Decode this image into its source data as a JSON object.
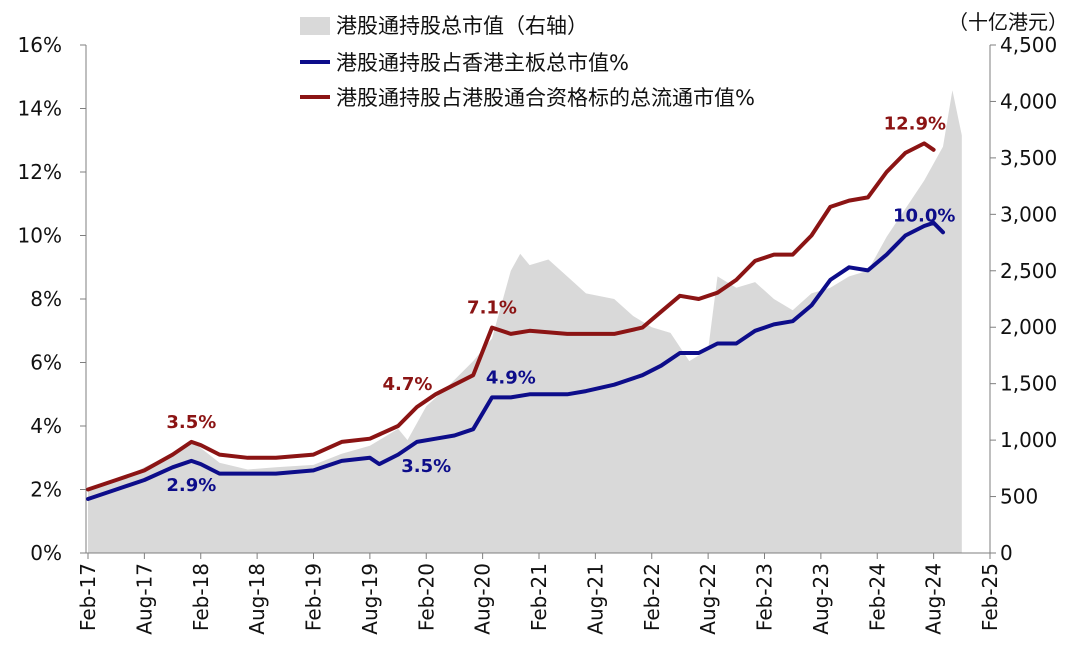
{
  "chart_data": {
    "type": "line",
    "x_ticks": [
      "Feb-17",
      "Aug-17",
      "Feb-18",
      "Aug-18",
      "Feb-19",
      "Aug-19",
      "Feb-20",
      "Aug-20",
      "Feb-21",
      "Aug-21",
      "Feb-22",
      "Aug-22",
      "Feb-23",
      "Aug-23",
      "Feb-24",
      "Aug-24",
      "Feb-25"
    ],
    "y_left": {
      "ticks": [
        "0%",
        "2%",
        "4%",
        "6%",
        "8%",
        "10%",
        "12%",
        "14%",
        "16%"
      ],
      "range": [
        0,
        16
      ]
    },
    "y_right": {
      "unit_label": "（十亿港元）",
      "ticks": [
        "0",
        "500",
        "1,000",
        "1,500",
        "2,000",
        "2,500",
        "3,000",
        "3,500",
        "4,000",
        "4,500"
      ],
      "range": [
        0,
        4500
      ]
    },
    "legend": {
      "area_label": "港股通持股总市值（右轴）",
      "blue_label": "港股通持股占香港主板总市值%",
      "red_label": "港股通持股占港股通合资格标的总流通市值%"
    },
    "colors": {
      "area": "#d9d9d9",
      "blue": "#0d0d8a",
      "red": "#8b1414"
    },
    "series": [
      {
        "name": "港股通持股总市值（右轴）",
        "axis": "right",
        "points": [
          [
            0,
            560
          ],
          [
            3,
            630
          ],
          [
            6,
            760
          ],
          [
            9,
            880
          ],
          [
            11,
            1000
          ],
          [
            12,
            930
          ],
          [
            14,
            800
          ],
          [
            17,
            740
          ],
          [
            20,
            760
          ],
          [
            24,
            780
          ],
          [
            27,
            880
          ],
          [
            30,
            950
          ],
          [
            33,
            1100
          ],
          [
            34,
            1000
          ],
          [
            36,
            1300
          ],
          [
            38,
            1450
          ],
          [
            41,
            1700
          ],
          [
            43,
            1900
          ],
          [
            45,
            2500
          ],
          [
            46,
            2650
          ],
          [
            47,
            2550
          ],
          [
            49,
            2600
          ],
          [
            51,
            2450
          ],
          [
            53,
            2300
          ],
          [
            56,
            2250
          ],
          [
            58,
            2100
          ],
          [
            60,
            2000
          ],
          [
            62,
            1950
          ],
          [
            64,
            1700
          ],
          [
            66,
            1800
          ],
          [
            67,
            2450
          ],
          [
            69,
            2350
          ],
          [
            71,
            2400
          ],
          [
            73,
            2250
          ],
          [
            75,
            2150
          ],
          [
            77,
            2300
          ],
          [
            79,
            2350
          ],
          [
            81,
            2450
          ],
          [
            83,
            2500
          ],
          [
            85,
            2800
          ],
          [
            87,
            3050
          ],
          [
            89,
            3300
          ],
          [
            91,
            3600
          ],
          [
            92,
            4100
          ],
          [
            93,
            3700
          ]
        ]
      },
      {
        "name": "港股通持股占香港主板总市值%",
        "axis": "left",
        "points": [
          [
            0,
            1.7
          ],
          [
            3,
            2.0
          ],
          [
            6,
            2.3
          ],
          [
            9,
            2.7
          ],
          [
            11,
            2.9
          ],
          [
            12,
            2.8
          ],
          [
            14,
            2.5
          ],
          [
            17,
            2.5
          ],
          [
            20,
            2.5
          ],
          [
            24,
            2.6
          ],
          [
            27,
            2.9
          ],
          [
            30,
            3.0
          ],
          [
            31,
            2.8
          ],
          [
            33,
            3.1
          ],
          [
            35,
            3.5
          ],
          [
            37,
            3.6
          ],
          [
            39,
            3.7
          ],
          [
            41,
            3.9
          ],
          [
            43,
            4.9
          ],
          [
            45,
            4.9
          ],
          [
            47,
            5.0
          ],
          [
            51,
            5.0
          ],
          [
            53,
            5.1
          ],
          [
            56,
            5.3
          ],
          [
            59,
            5.6
          ],
          [
            61,
            5.9
          ],
          [
            63,
            6.3
          ],
          [
            65,
            6.3
          ],
          [
            67,
            6.6
          ],
          [
            69,
            6.6
          ],
          [
            71,
            7.0
          ],
          [
            73,
            7.2
          ],
          [
            75,
            7.3
          ],
          [
            77,
            7.8
          ],
          [
            79,
            8.6
          ],
          [
            81,
            9.0
          ],
          [
            83,
            8.9
          ],
          [
            85,
            9.4
          ],
          [
            87,
            10.0
          ],
          [
            89,
            10.3
          ],
          [
            90,
            10.4
          ],
          [
            91,
            10.1
          ]
        ]
      },
      {
        "name": "港股通持股占港股通合资格标的总流通市值%",
        "axis": "left",
        "points": [
          [
            0,
            2.0
          ],
          [
            3,
            2.3
          ],
          [
            6,
            2.6
          ],
          [
            9,
            3.1
          ],
          [
            11,
            3.5
          ],
          [
            12,
            3.4
          ],
          [
            14,
            3.1
          ],
          [
            17,
            3.0
          ],
          [
            20,
            3.0
          ],
          [
            24,
            3.1
          ],
          [
            27,
            3.5
          ],
          [
            30,
            3.6
          ],
          [
            33,
            4.0
          ],
          [
            35,
            4.6
          ],
          [
            37,
            5.0
          ],
          [
            39,
            5.3
          ],
          [
            41,
            5.6
          ],
          [
            43,
            7.1
          ],
          [
            45,
            6.9
          ],
          [
            47,
            7.0
          ],
          [
            51,
            6.9
          ],
          [
            53,
            6.9
          ],
          [
            56,
            6.9
          ],
          [
            59,
            7.1
          ],
          [
            61,
            7.6
          ],
          [
            63,
            8.1
          ],
          [
            65,
            8.0
          ],
          [
            67,
            8.2
          ],
          [
            69,
            8.6
          ],
          [
            71,
            9.2
          ],
          [
            73,
            9.4
          ],
          [
            75,
            9.4
          ],
          [
            77,
            10.0
          ],
          [
            79,
            10.9
          ],
          [
            81,
            11.1
          ],
          [
            83,
            11.2
          ],
          [
            85,
            12.0
          ],
          [
            87,
            12.6
          ],
          [
            89,
            12.9
          ],
          [
            90,
            12.7
          ]
        ]
      }
    ],
    "annotations": [
      {
        "text": "3.5%",
        "series": "red",
        "x": 11,
        "y": 3.5,
        "pos": "above"
      },
      {
        "text": "2.9%",
        "series": "blue",
        "x": 11,
        "y": 2.9,
        "pos": "below"
      },
      {
        "text": "4.7%",
        "series": "red",
        "x": 34,
        "y": 4.7,
        "pos": "above"
      },
      {
        "text": "3.5%",
        "series": "blue",
        "x": 36,
        "y": 3.5,
        "pos": "below"
      },
      {
        "text": "7.1%",
        "series": "red",
        "x": 43,
        "y": 7.1,
        "pos": "above"
      },
      {
        "text": "4.9%",
        "series": "blue",
        "x": 45,
        "y": 4.9,
        "pos": "above"
      },
      {
        "text": "12.9%",
        "series": "red",
        "x": 88,
        "y": 12.9,
        "pos": "above"
      },
      {
        "text": "10.0%",
        "series": "blue",
        "x": 89,
        "y": 10.0,
        "pos": "above"
      }
    ],
    "x_range": [
      0,
      96
    ],
    "x_tick_step": 6
  }
}
